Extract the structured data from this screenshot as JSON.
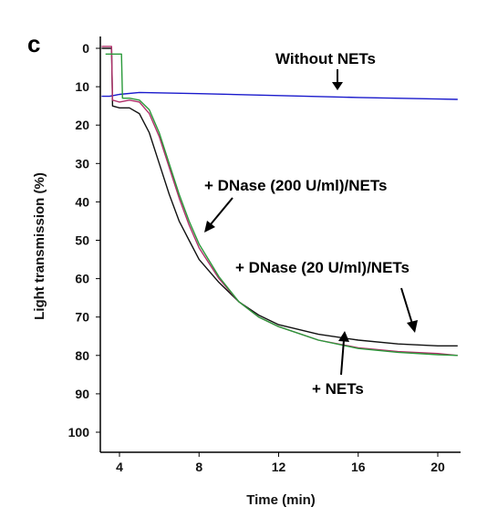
{
  "panel_label": "c",
  "chart_data": {
    "type": "line",
    "title": "",
    "xlabel": "Time (min)",
    "ylabel": "Light transmission (%)",
    "xlim": [
      3,
      21
    ],
    "ylim": [
      100,
      0
    ],
    "y_inverted": true,
    "xticks": [
      4,
      8,
      12,
      16,
      20
    ],
    "yticks": [
      0,
      10,
      20,
      30,
      40,
      50,
      60,
      70,
      80,
      90,
      100
    ],
    "grid": false,
    "legend": "none",
    "series": [
      {
        "color": "#1a1acc",
        "x": [
          3.1,
          3.4,
          3.5,
          4.0,
          5.0,
          8.0,
          12.0,
          16.0,
          20.0,
          21.0
        ],
        "y": [
          12.5,
          12.5,
          12.5,
          12.0,
          11.5,
          11.8,
          12.3,
          12.8,
          13.2,
          13.3
        ]
      },
      {
        "color": "#111111",
        "x": [
          3.1,
          3.6,
          3.65,
          4.0,
          4.5,
          5.0,
          5.5,
          6.0,
          6.5,
          7.0,
          7.5,
          8.0,
          9.0,
          10.0,
          11.0,
          12.0,
          14.0,
          16.0,
          18.0,
          20.0,
          21.0
        ],
        "y": [
          0,
          0,
          15,
          15.5,
          15.5,
          17,
          22,
          30,
          38,
          45,
          50,
          55,
          61,
          66,
          69.5,
          72,
          74.5,
          76,
          77,
          77.5,
          77.5
        ]
      },
      {
        "color": "#b0306a",
        "x": [
          3.1,
          3.6,
          3.65,
          4.0,
          4.5,
          5.0,
          5.5,
          6.0,
          6.5,
          7.0,
          7.5,
          8.0,
          9.0,
          10.0,
          11.0,
          12.0,
          14.0,
          16.0,
          18.0,
          20.0,
          21.0
        ],
        "y": [
          -0.5,
          -0.5,
          13.5,
          14,
          13.5,
          14,
          17,
          23,
          31,
          39,
          46,
          52,
          60,
          66,
          70,
          72.5,
          76,
          78,
          79,
          79.5,
          80
        ]
      },
      {
        "color": "#2a9a3a",
        "x": [
          3.3,
          4.1,
          4.15,
          4.5,
          5.0,
          5.5,
          6.0,
          6.5,
          7.0,
          7.5,
          8.0,
          9.0,
          10.0,
          11.0,
          12.0,
          14.0,
          16.0,
          18.0,
          20.0,
          21.0
        ],
        "y": [
          1.5,
          1.5,
          13,
          13,
          13.5,
          16,
          22,
          30,
          38,
          45,
          51,
          59.5,
          66,
          70,
          72.5,
          76,
          78.2,
          79.2,
          79.8,
          80
        ]
      }
    ],
    "annotations": [
      "Without NETs",
      "+ DNase (200 U/ml)/NETs",
      "+ DNase (20 U/ml)/NETs",
      "+ NETs"
    ]
  }
}
